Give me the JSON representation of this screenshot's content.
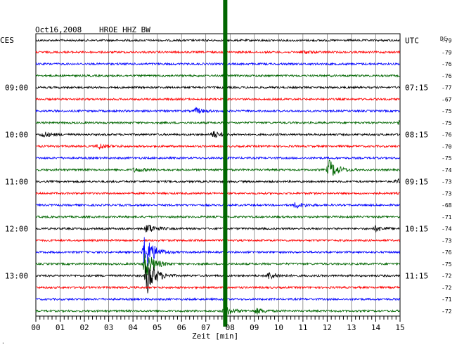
{
  "header": {
    "date": "Oct16,2008",
    "station": "HROE HHZ BW",
    "left_tz": "CES",
    "right_tz": "UTC",
    "dc_label": "DC"
  },
  "colors": {
    "trace_cycle": [
      "#000000",
      "#ff0000",
      "#0000ff",
      "#006600"
    ],
    "grid": "#000000",
    "marker": "#006600"
  },
  "chart_data": {
    "type": "line",
    "title": "Oct16,2008  HROE HHZ BW",
    "xlabel": "Zeit [min]",
    "x_ticks": [
      "00",
      "01",
      "02",
      "03",
      "04",
      "05",
      "06",
      "07",
      "08",
      "09",
      "10",
      "11",
      "12",
      "13",
      "14",
      "15"
    ],
    "xlim": [
      0,
      15
    ],
    "minutes_per_trace": 15,
    "left_time_labels": [
      {
        "row": 4,
        "text": "09:00"
      },
      {
        "row": 8,
        "text": "10:00"
      },
      {
        "row": 12,
        "text": "11:00"
      },
      {
        "row": 16,
        "text": "12:00"
      },
      {
        "row": 20,
        "text": "13:00"
      }
    ],
    "right_time_labels": [
      {
        "row": 0,
        "text": "UTC"
      },
      {
        "row": 4,
        "text": "07:15"
      },
      {
        "row": 8,
        "text": "08:15"
      },
      {
        "row": 12,
        "text": "09:15"
      },
      {
        "row": 16,
        "text": "10:15"
      },
      {
        "row": 20,
        "text": "11:15"
      }
    ],
    "dc_offsets": [
      -79,
      -79,
      -76,
      -76,
      -77,
      -67,
      -75,
      -75,
      -76,
      -70,
      -75,
      -74,
      -73,
      -73,
      -68,
      -71,
      -74,
      -73,
      -76,
      -75,
      -72,
      -72,
      -71,
      -72
    ],
    "marker_minute": 7.8,
    "events": [
      {
        "trace": 1,
        "minute": 11.0,
        "amplitude": 2
      },
      {
        "trace": 6,
        "minute": 6.6,
        "amplitude": 4
      },
      {
        "trace": 7,
        "minute": 15.0,
        "amplitude": 4
      },
      {
        "trace": 8,
        "minute": 0.3,
        "amplitude": 4
      },
      {
        "trace": 8,
        "minute": 7.3,
        "amplitude": 5
      },
      {
        "trace": 9,
        "minute": 2.6,
        "amplitude": 4
      },
      {
        "trace": 11,
        "minute": 4.1,
        "amplitude": 3
      },
      {
        "trace": 11,
        "minute": 12.1,
        "amplitude": 14
      },
      {
        "trace": 12,
        "minute": 14.9,
        "amplitude": 3
      },
      {
        "trace": 14,
        "minute": 10.7,
        "amplitude": 4
      },
      {
        "trace": 16,
        "minute": 4.6,
        "amplitude": 7
      },
      {
        "trace": 16,
        "minute": 14.0,
        "amplitude": 4
      },
      {
        "trace": 18,
        "minute": 4.5,
        "amplitude": 28
      },
      {
        "trace": 19,
        "minute": 4.5,
        "amplitude": 22
      },
      {
        "trace": 20,
        "minute": 4.6,
        "amplitude": 26
      },
      {
        "trace": 20,
        "minute": 9.6,
        "amplitude": 5
      },
      {
        "trace": 23,
        "minute": 7.8,
        "amplitude": 6
      },
      {
        "trace": 23,
        "minute": 9.1,
        "amplitude": 4
      }
    ]
  }
}
